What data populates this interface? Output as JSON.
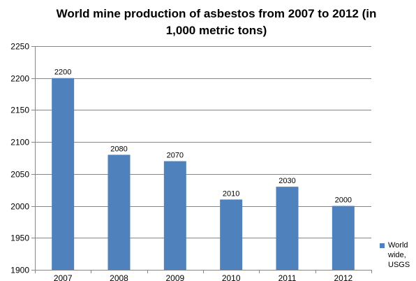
{
  "chart_data": {
    "type": "bar",
    "title": "World mine production of asbestos from 2007 to 2012 (in 1,000 metric tons)",
    "categories": [
      "2007",
      "2008",
      "2009",
      "2010",
      "2011",
      "2012"
    ],
    "series": [
      {
        "name": "World wide, USGS",
        "values": [
          2200,
          2080,
          2070,
          2010,
          2030,
          2000
        ],
        "color": "#4F81BD"
      }
    ],
    "ylim": [
      1900,
      2250
    ],
    "yticks": [
      1900,
      1950,
      2000,
      2050,
      2100,
      2150,
      2200,
      2250
    ],
    "grid": true,
    "legend_position": "right-bottom",
    "data_labels": true
  }
}
